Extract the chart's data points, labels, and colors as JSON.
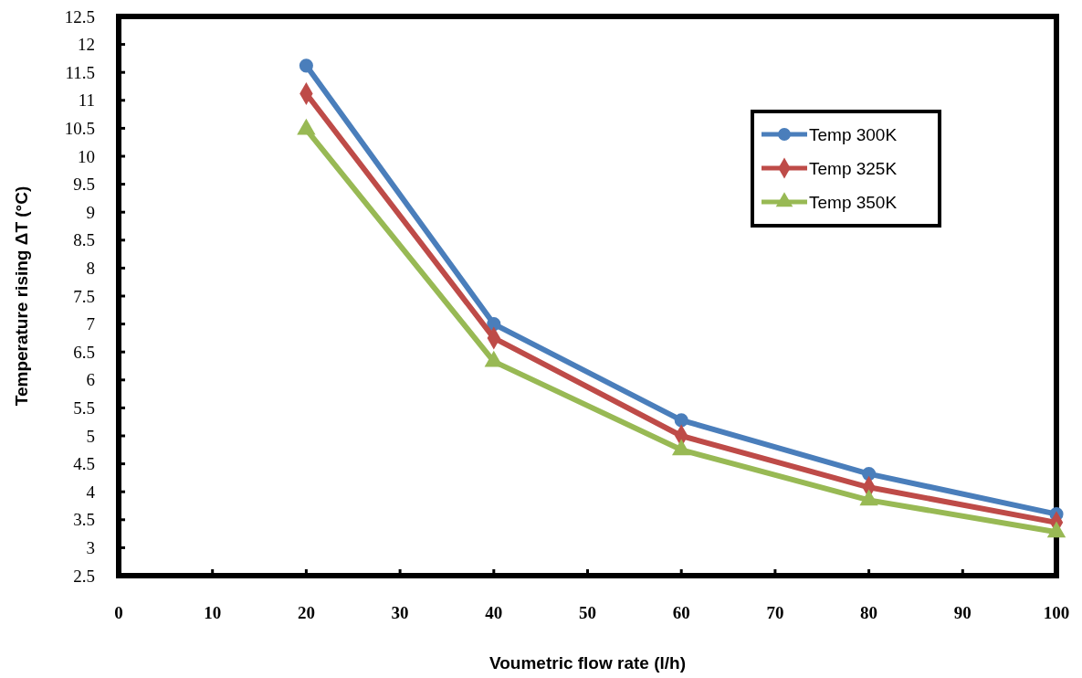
{
  "chart_data": {
    "type": "line",
    "xlabel": "Voumetric flow rate (l/h)",
    "ylabel": "Temperature rising ΔT (°C)",
    "x": [
      20,
      40,
      60,
      80,
      100
    ],
    "xlim": [
      0,
      100
    ],
    "xticks": [
      0,
      10,
      20,
      30,
      40,
      50,
      60,
      70,
      80,
      90,
      100
    ],
    "ylim": [
      2.5,
      12.5
    ],
    "yticks": [
      {
        "value": 2.5,
        "label": "2.5"
      },
      3,
      {
        "value": 3.5,
        "label": "3.5"
      },
      4,
      {
        "value": 4.5,
        "label": "4.5"
      },
      5,
      {
        "value": 5.5,
        "label": "5.5"
      },
      6,
      {
        "value": 6.5,
        "label": "6.5"
      },
      7,
      {
        "value": 7.5,
        "label": "7.5"
      },
      8,
      {
        "value": 8.5,
        "label": "8.5"
      },
      9,
      {
        "value": 9.5,
        "label": "9.5"
      },
      10,
      {
        "value": 10.5,
        "label": "10.5"
      },
      11,
      {
        "value": 11.5,
        "label": "11.5"
      },
      12,
      {
        "value": 12.5,
        "label": "12.5"
      }
    ],
    "grid": false,
    "legend": "top right",
    "series": [
      {
        "name": "Temp 300K",
        "color": "#4a7ebb",
        "marker": "circle",
        "values": [
          11.62,
          7.0,
          5.28,
          4.32,
          3.6
        ]
      },
      {
        "name": "Temp 325K",
        "color": "#be4b48",
        "marker": "diamond",
        "values": [
          11.12,
          6.75,
          5.0,
          4.08,
          3.45
        ]
      },
      {
        "name": "Temp 350K",
        "color": "#98b954",
        "marker": "triangle",
        "values": [
          10.48,
          6.33,
          4.75,
          3.85,
          3.28
        ]
      }
    ]
  }
}
